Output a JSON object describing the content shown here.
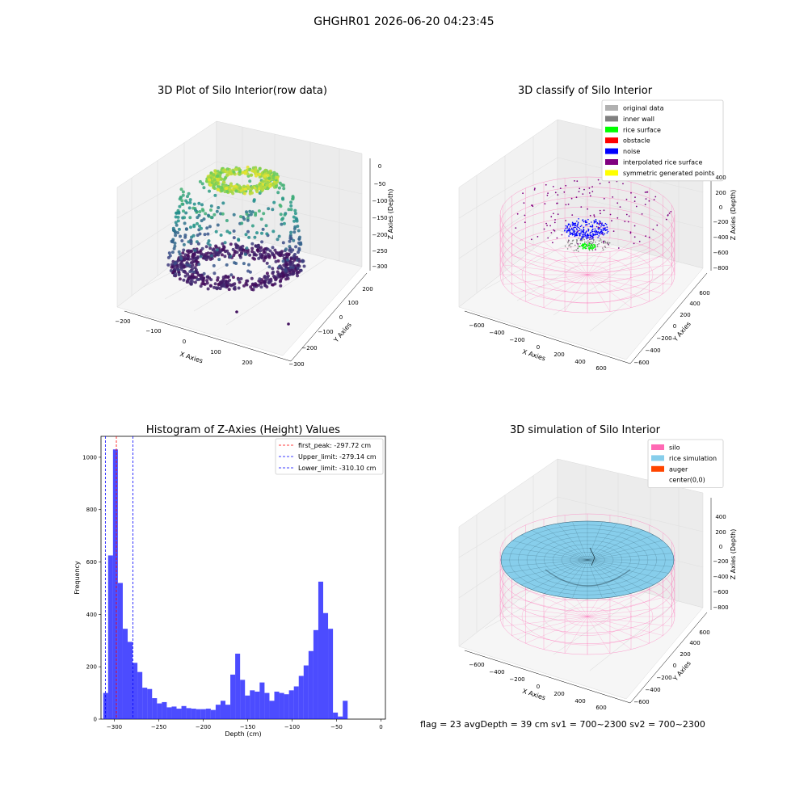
{
  "suptitle": "GHGHR01 2026-06-20 04:23:45",
  "status_line": "flag = 23   avgDepth = 39 cm    sv1 = 700~2300  sv2 = 700~2300",
  "panels": {
    "raw": {
      "title": "3D Plot of Silo Interior(row data)",
      "xlabel": "X Axies",
      "ylabel": "Y Axies",
      "zlabel": "Z Axies (Depth)",
      "xticks": [
        "−200",
        "−100",
        "0",
        "100",
        "200"
      ],
      "yticks": [
        "−300",
        "−200",
        "−100",
        "0",
        "100",
        "200"
      ],
      "zticks": [
        "0",
        "−50",
        "−100",
        "−150",
        "−200",
        "−250",
        "−300"
      ]
    },
    "classify": {
      "title": "3D classify of Silo Interior",
      "xlabel": "X Axies",
      "ylabel": "Y Axies",
      "zlabel": "Z Axies (Depth)",
      "xticks": [
        "−600",
        "−400",
        "−200",
        "0",
        "200",
        "400",
        "600"
      ],
      "yticks": [
        "−600",
        "−400",
        "−200",
        "0",
        "200",
        "400",
        "600"
      ],
      "zticks": [
        "400",
        "200",
        "0",
        "−200",
        "−400",
        "−600",
        "−800"
      ],
      "legend": [
        {
          "label": "original data",
          "color": "#b0b0b0"
        },
        {
          "label": "inner wall",
          "color": "#808080"
        },
        {
          "label": "rice surface",
          "color": "#00ff00"
        },
        {
          "label": "obstacle",
          "color": "#ff0000"
        },
        {
          "label": "noise",
          "color": "#0000ff"
        },
        {
          "label": "interpolated rice surface",
          "color": "#800080"
        },
        {
          "label": "symmetric generated points",
          "color": "#ffff00"
        }
      ]
    },
    "simulation": {
      "title": "3D simulation of Silo Interior",
      "xlabel": "X Axies",
      "ylabel": "Y Axies",
      "zlabel": "Z Axies (Depth)",
      "xticks": [
        "−600",
        "−400",
        "−200",
        "0",
        "200",
        "400",
        "600"
      ],
      "yticks": [
        "−600",
        "−400",
        "−200",
        "0",
        "200",
        "400",
        "600"
      ],
      "zticks": [
        "400",
        "200",
        "0",
        "−200",
        "−400",
        "−600",
        "−800"
      ],
      "legend": [
        {
          "label": "silo",
          "color": "#ff69b4"
        },
        {
          "label": "rice simulation",
          "color": "#87ceeb"
        },
        {
          "label": "auger",
          "color": "#ff4500"
        },
        {
          "label": "center(0,0)",
          "color": ""
        }
      ]
    }
  },
  "chart_data": [
    {
      "type": "bar",
      "title": "Histogram of Z-Axies (Height) Values",
      "xlabel": "Depth (cm)",
      "ylabel": "Frequency",
      "xlim": [
        -315,
        5
      ],
      "ylim": [
        0,
        1080
      ],
      "xticks": [
        -300,
        -250,
        -200,
        -150,
        -100,
        -50,
        0
      ],
      "yticks": [
        0,
        200,
        400,
        600,
        800,
        1000
      ],
      "bar_color": "#0000ff",
      "bin_start": -312.5,
      "bin_width": 5.5,
      "values": [
        100,
        625,
        1030,
        520,
        345,
        295,
        215,
        180,
        120,
        115,
        80,
        60,
        65,
        45,
        48,
        40,
        50,
        42,
        40,
        38,
        38,
        40,
        35,
        55,
        70,
        55,
        170,
        250,
        150,
        90,
        110,
        105,
        140,
        100,
        70,
        105,
        100,
        95,
        110,
        125,
        165,
        205,
        260,
        340,
        525,
        405,
        345,
        25,
        10,
        70
      ],
      "vlines": [
        {
          "label": "first_peak: -297.72 cm",
          "x": -297.72,
          "color": "#ff0000"
        },
        {
          "label": "Upper_limit: -279.14 cm",
          "x": -279.14,
          "color": "#0000ff"
        },
        {
          "label": "Lower_limit: -310.10 cm",
          "x": -310.1,
          "color": "#0000ff"
        }
      ],
      "legend_position": "top-right"
    }
  ]
}
